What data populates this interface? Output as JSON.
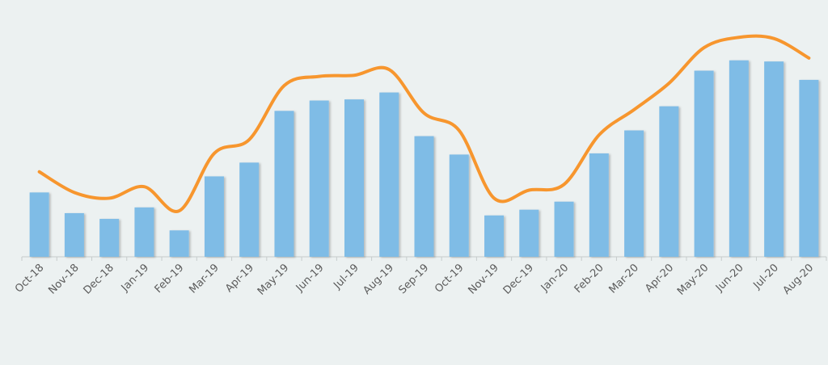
{
  "chart_data": {
    "type": "bar",
    "title": "",
    "xlabel": "",
    "ylabel": "",
    "categories": [
      "Oct-18",
      "Nov-18",
      "Dec-18",
      "Jan-19",
      "Feb-19",
      "Mar-19",
      "Apr-19",
      "May-19",
      "Jun-19",
      "Jul-19",
      "Aug-19",
      "Sep-19",
      "Oct-19",
      "Nov-19",
      "Dec-19",
      "Jan-20",
      "Feb-20",
      "Mar-20",
      "Apr-20",
      "May-20",
      "Jun-20",
      "Jul-20",
      "Aug-20"
    ],
    "series": [
      {
        "type": "bar",
        "color": "#7fbce6",
        "values": [
          28,
          19,
          16.5,
          21.5,
          11.5,
          35,
          41,
          63.5,
          68,
          68.5,
          71.5,
          52.5,
          44.5,
          18,
          20.5,
          24,
          45,
          55,
          65.5,
          81,
          85.5,
          85,
          77
        ]
      },
      {
        "type": "line",
        "color": "#f7962e",
        "values": [
          37,
          28,
          25.5,
          30.5,
          20,
          45,
          51,
          74.5,
          78.5,
          79,
          81.5,
          62.5,
          55,
          25.5,
          29,
          31.5,
          53,
          64,
          75.5,
          91,
          95.5,
          95,
          86.5
        ]
      }
    ],
    "ylim": [
      0,
      110
    ],
    "grid": false,
    "legend": "none"
  }
}
